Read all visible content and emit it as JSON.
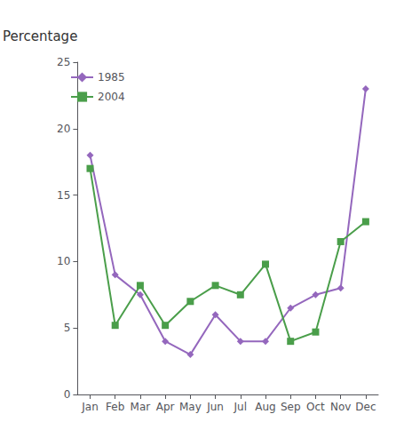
{
  "chart_data": {
    "type": "line",
    "ylabel": "Percentage",
    "categories": [
      "Jan",
      "Feb",
      "Mar",
      "Apr",
      "May",
      "Jun",
      "Jul",
      "Aug",
      "Sep",
      "Oct",
      "Nov",
      "Dec"
    ],
    "series": [
      {
        "name": "1985",
        "color": "#9467bd",
        "marker": "diamond",
        "values": [
          18.0,
          9.0,
          7.5,
          4.0,
          3.0,
          6.0,
          4.0,
          4.0,
          6.5,
          7.5,
          8.0,
          23.0
        ]
      },
      {
        "name": "2004",
        "color": "#4a9e4a",
        "marker": "square",
        "values": [
          17.0,
          5.2,
          8.2,
          5.2,
          7.0,
          8.2,
          7.5,
          9.8,
          4.0,
          4.7,
          11.5,
          13.0
        ]
      }
    ],
    "ylim": [
      0,
      25
    ],
    "yticks": [
      0,
      5,
      10,
      15,
      20,
      25
    ],
    "grid": false,
    "legend": "upper left"
  }
}
